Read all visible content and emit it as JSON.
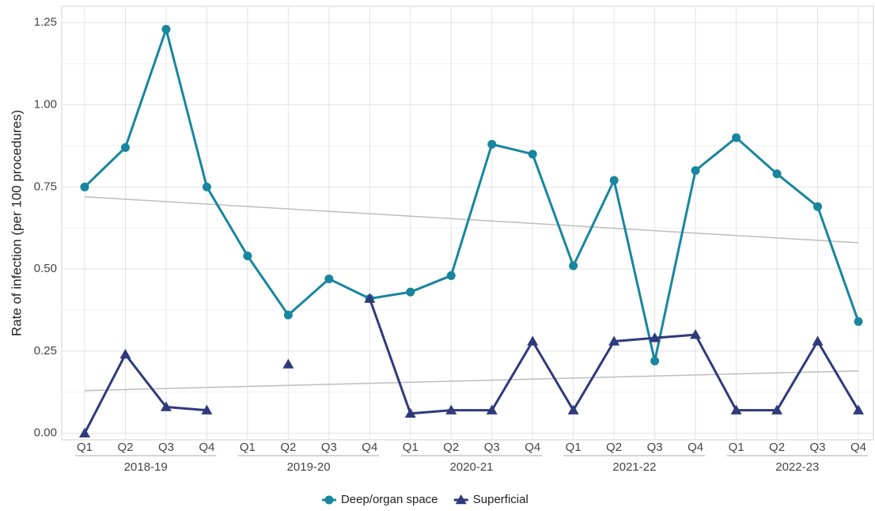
{
  "chart_data": {
    "type": "line",
    "y_label": "Rate of infection (per 100 procedures)",
    "categories": [
      "Q1",
      "Q2",
      "Q3",
      "Q4",
      "Q1",
      "Q2",
      "Q3",
      "Q4",
      "Q1",
      "Q2",
      "Q3",
      "Q4",
      "Q1",
      "Q2",
      "Q3",
      "Q4",
      "Q1",
      "Q2",
      "Q3",
      "Q4"
    ],
    "groups": [
      "2018-19",
      "2019-20",
      "2020-21",
      "2021-22",
      "2022-23"
    ],
    "series": [
      {
        "name": "Deep/organ space",
        "color": "#17869e",
        "marker": "circle",
        "values": [
          0.75,
          0.87,
          1.23,
          0.75,
          0.54,
          0.36,
          0.47,
          0.41,
          0.43,
          0.48,
          0.88,
          0.85,
          0.51,
          0.77,
          0.22,
          0.8,
          0.9,
          0.79,
          0.69,
          0.34
        ]
      },
      {
        "name": "Superficial",
        "color": "#2e3a7c",
        "marker": "triangle",
        "values": [
          0.0,
          0.24,
          0.08,
          0.07,
          null,
          0.21,
          null,
          0.41,
          0.06,
          0.07,
          0.07,
          0.28,
          0.07,
          0.28,
          0.29,
          0.3,
          0.07,
          0.07,
          0.28,
          0.07
        ]
      }
    ],
    "trendlines": [
      {
        "color": "#bdbdbd",
        "values": [
          0.72,
          0.58
        ]
      },
      {
        "color": "#bdbdbd",
        "values": [
          0.13,
          0.19
        ]
      }
    ],
    "ylim": [
      -0.02,
      1.3
    ],
    "yticks": [
      {
        "value": 0,
        "label": "0.00"
      },
      {
        "value": 0.25,
        "label": "0.25"
      },
      {
        "value": 0.5,
        "label": "0.50"
      },
      {
        "value": 0.75,
        "label": "0.75"
      },
      {
        "value": 1,
        "label": "1.00"
      },
      {
        "value": 1.25,
        "label": "1.25"
      }
    ],
    "grid": true,
    "legend": "bottom"
  }
}
